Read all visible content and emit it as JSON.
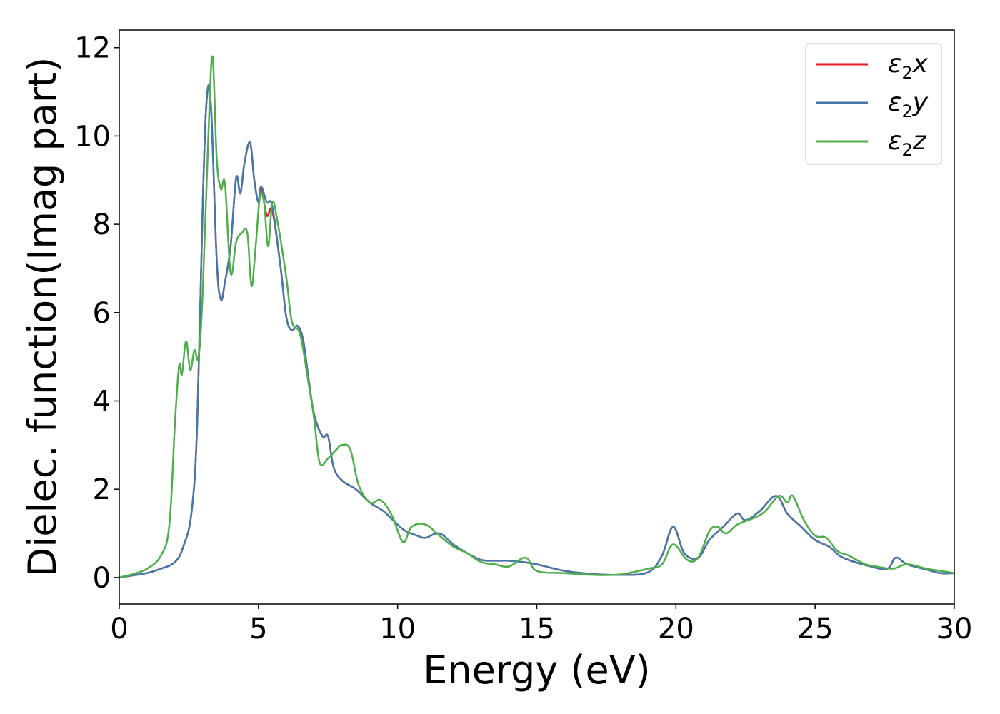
{
  "chart_data": {
    "type": "line",
    "title": "",
    "xlabel": "Energy (eV)",
    "ylabel": "Dielec. function(Imag part)",
    "xlim": [
      0,
      30
    ],
    "ylim": [
      -0.6,
      12.4
    ],
    "xticks": [
      0,
      5,
      10,
      15,
      20,
      25,
      30
    ],
    "yticks": [
      0,
      2,
      4,
      6,
      8,
      10,
      12
    ],
    "grid": false,
    "legend_position": "top-right",
    "series": [
      {
        "name": "ε2x",
        "legend_base": "ε",
        "legend_sub": "2",
        "legend_suffix": "x",
        "color": "#e41a1c",
        "x": [
          0,
          0.5,
          1.0,
          1.5,
          2.0,
          2.3,
          2.6,
          2.8,
          3.0,
          3.15,
          3.3,
          3.5,
          3.65,
          3.8,
          4.0,
          4.2,
          4.35,
          4.5,
          4.7,
          4.85,
          5.0,
          5.1,
          5.3,
          5.5,
          5.8,
          6.0,
          6.2,
          6.4,
          6.6,
          6.8,
          7.0,
          7.3,
          7.5,
          7.7,
          8.0,
          8.5,
          9.0,
          9.5,
          10.0,
          10.3,
          10.7,
          11.0,
          11.5,
          12.0,
          12.5,
          13.0,
          13.5,
          14.0,
          14.5,
          15.0,
          16.0,
          17.0,
          18.0,
          19.0,
          19.5,
          19.9,
          20.3,
          20.8,
          21.2,
          21.7,
          22.2,
          22.5,
          23.0,
          23.6,
          24.0,
          24.5,
          25.0,
          25.5,
          26.0,
          27.0,
          27.6,
          27.9,
          28.3,
          29.0,
          29.5,
          30.0
        ],
        "values": [
          0,
          0.05,
          0.1,
          0.2,
          0.35,
          0.7,
          1.5,
          3.5,
          8.5,
          10.9,
          10.6,
          7.2,
          6.3,
          6.7,
          7.5,
          9.05,
          8.7,
          9.4,
          9.85,
          9.0,
          8.5,
          8.85,
          8.2,
          8.3,
          7.0,
          5.9,
          5.6,
          5.7,
          5.4,
          4.5,
          3.7,
          3.2,
          3.2,
          2.5,
          2.2,
          2.0,
          1.7,
          1.5,
          1.2,
          1.05,
          0.95,
          0.9,
          1.0,
          0.75,
          0.55,
          0.4,
          0.38,
          0.38,
          0.35,
          0.3,
          0.15,
          0.08,
          0.06,
          0.12,
          0.5,
          1.15,
          0.55,
          0.45,
          0.85,
          1.15,
          1.45,
          1.3,
          1.5,
          1.85,
          1.45,
          1.15,
          0.85,
          0.7,
          0.45,
          0.25,
          0.2,
          0.45,
          0.3,
          0.18,
          0.1,
          0.1
        ]
      },
      {
        "name": "ε2y",
        "legend_base": "ε",
        "legend_sub": "2",
        "legend_suffix": "y",
        "color": "#4477aa",
        "x": [
          0,
          0.5,
          1.0,
          1.5,
          2.0,
          2.3,
          2.6,
          2.8,
          3.0,
          3.15,
          3.3,
          3.5,
          3.65,
          3.8,
          4.0,
          4.2,
          4.35,
          4.5,
          4.7,
          4.85,
          5.0,
          5.1,
          5.3,
          5.5,
          5.8,
          6.0,
          6.2,
          6.4,
          6.6,
          6.8,
          7.0,
          7.3,
          7.5,
          7.7,
          8.0,
          8.5,
          9.0,
          9.5,
          10.0,
          10.3,
          10.7,
          11.0,
          11.5,
          12.0,
          12.5,
          13.0,
          13.5,
          14.0,
          14.5,
          15.0,
          16.0,
          17.0,
          18.0,
          19.0,
          19.5,
          19.9,
          20.3,
          20.8,
          21.2,
          21.7,
          22.2,
          22.5,
          23.0,
          23.6,
          24.0,
          24.5,
          25.0,
          25.5,
          26.0,
          27.0,
          27.6,
          27.9,
          28.3,
          29.0,
          29.5,
          30.0
        ],
        "values": [
          0,
          0.05,
          0.1,
          0.2,
          0.35,
          0.7,
          1.5,
          3.5,
          8.5,
          10.9,
          10.6,
          7.2,
          6.3,
          6.7,
          7.5,
          9.05,
          8.7,
          9.4,
          9.85,
          9.0,
          8.5,
          8.85,
          8.5,
          8.4,
          7.0,
          5.9,
          5.6,
          5.7,
          5.4,
          4.5,
          3.7,
          3.2,
          3.2,
          2.5,
          2.2,
          2.0,
          1.7,
          1.5,
          1.2,
          1.05,
          0.95,
          0.9,
          1.0,
          0.75,
          0.55,
          0.4,
          0.38,
          0.38,
          0.35,
          0.3,
          0.15,
          0.08,
          0.06,
          0.12,
          0.5,
          1.15,
          0.55,
          0.45,
          0.85,
          1.15,
          1.45,
          1.3,
          1.5,
          1.85,
          1.45,
          1.15,
          0.85,
          0.7,
          0.45,
          0.25,
          0.2,
          0.45,
          0.3,
          0.18,
          0.1,
          0.1
        ]
      },
      {
        "name": "ε2z",
        "legend_base": "ε",
        "legend_sub": "2",
        "legend_suffix": "z",
        "color": "#4daf4a",
        "x": [
          0,
          0.5,
          1.0,
          1.5,
          1.8,
          2.0,
          2.15,
          2.25,
          2.4,
          2.55,
          2.7,
          2.85,
          3.0,
          3.2,
          3.35,
          3.5,
          3.65,
          3.8,
          4.0,
          4.2,
          4.4,
          4.6,
          4.75,
          4.9,
          5.05,
          5.2,
          5.35,
          5.5,
          5.7,
          6.0,
          6.2,
          6.5,
          6.8,
          7.0,
          7.2,
          7.5,
          7.8,
          8.0,
          8.3,
          8.6,
          9.0,
          9.4,
          9.8,
          10.2,
          10.5,
          11.0,
          11.5,
          12.0,
          12.5,
          13.0,
          13.5,
          14.0,
          14.6,
          15.0,
          16.0,
          17.0,
          18.0,
          19.0,
          19.5,
          19.9,
          20.4,
          20.8,
          21.2,
          21.5,
          21.8,
          22.2,
          22.8,
          23.2,
          23.7,
          24.0,
          24.2,
          24.6,
          25.0,
          25.4,
          25.8,
          26.2,
          26.8,
          27.2,
          27.8,
          28.3,
          29.0,
          29.5,
          30.0
        ],
        "values": [
          0,
          0.08,
          0.2,
          0.5,
          1.2,
          3.5,
          4.8,
          4.6,
          5.35,
          4.7,
          5.15,
          5.0,
          6.5,
          10.0,
          11.8,
          9.5,
          8.8,
          8.9,
          6.9,
          7.6,
          7.8,
          7.8,
          6.6,
          7.5,
          8.6,
          8.5,
          7.5,
          8.5,
          8.0,
          6.8,
          5.8,
          5.5,
          4.4,
          3.6,
          2.6,
          2.7,
          2.9,
          3.0,
          2.9,
          2.1,
          1.7,
          1.75,
          1.4,
          0.8,
          1.15,
          1.2,
          0.95,
          0.7,
          0.55,
          0.35,
          0.3,
          0.25,
          0.45,
          0.15,
          0.1,
          0.06,
          0.07,
          0.2,
          0.3,
          0.75,
          0.4,
          0.45,
          1.05,
          1.15,
          1.0,
          1.2,
          1.35,
          1.5,
          1.85,
          1.7,
          1.85,
          1.3,
          0.95,
          0.9,
          0.6,
          0.5,
          0.3,
          0.25,
          0.2,
          0.3,
          0.2,
          0.15,
          0.1
        ]
      }
    ]
  }
}
